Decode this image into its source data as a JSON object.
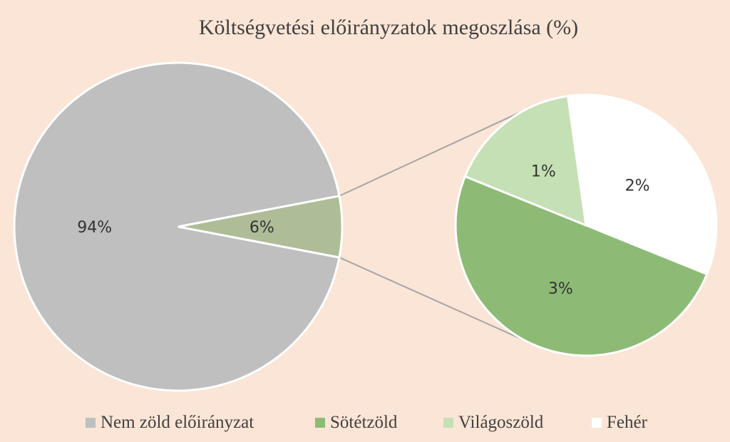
{
  "chart_data": {
    "type": "pie",
    "title": "Költségvetési előirányzatok megoszlása (%)",
    "main_slices": [
      {
        "name": "Nem zöld előirányzat",
        "value": 94,
        "label": "94%",
        "color": "#bfbfbf"
      },
      {
        "name": "",
        "value": 6,
        "label": "6%",
        "color": "#aebd98"
      }
    ],
    "secondary_slices": [
      {
        "name": "Fehér",
        "value": 2,
        "label": "2%",
        "color": "#ffffff"
      },
      {
        "name": "Sötétzöld",
        "value": 3,
        "label": "3%",
        "color": "#8dbb76"
      },
      {
        "name": "Világoszöld",
        "value": 1,
        "label": "1%",
        "color": "#c5e0b4"
      }
    ],
    "legend": [
      {
        "label": "Nem zöld előirányzat",
        "color": "#bfbfbf"
      },
      {
        "label": "Sötétzöld",
        "color": "#8dbb76"
      },
      {
        "label": "Világoszöld",
        "color": "#c5e0b4"
      },
      {
        "label": "Fehér",
        "color": "#ffffff"
      }
    ],
    "legend_position": "bottom",
    "connector_color": "#a6a6a6",
    "background_color": "#fbe5d6"
  }
}
